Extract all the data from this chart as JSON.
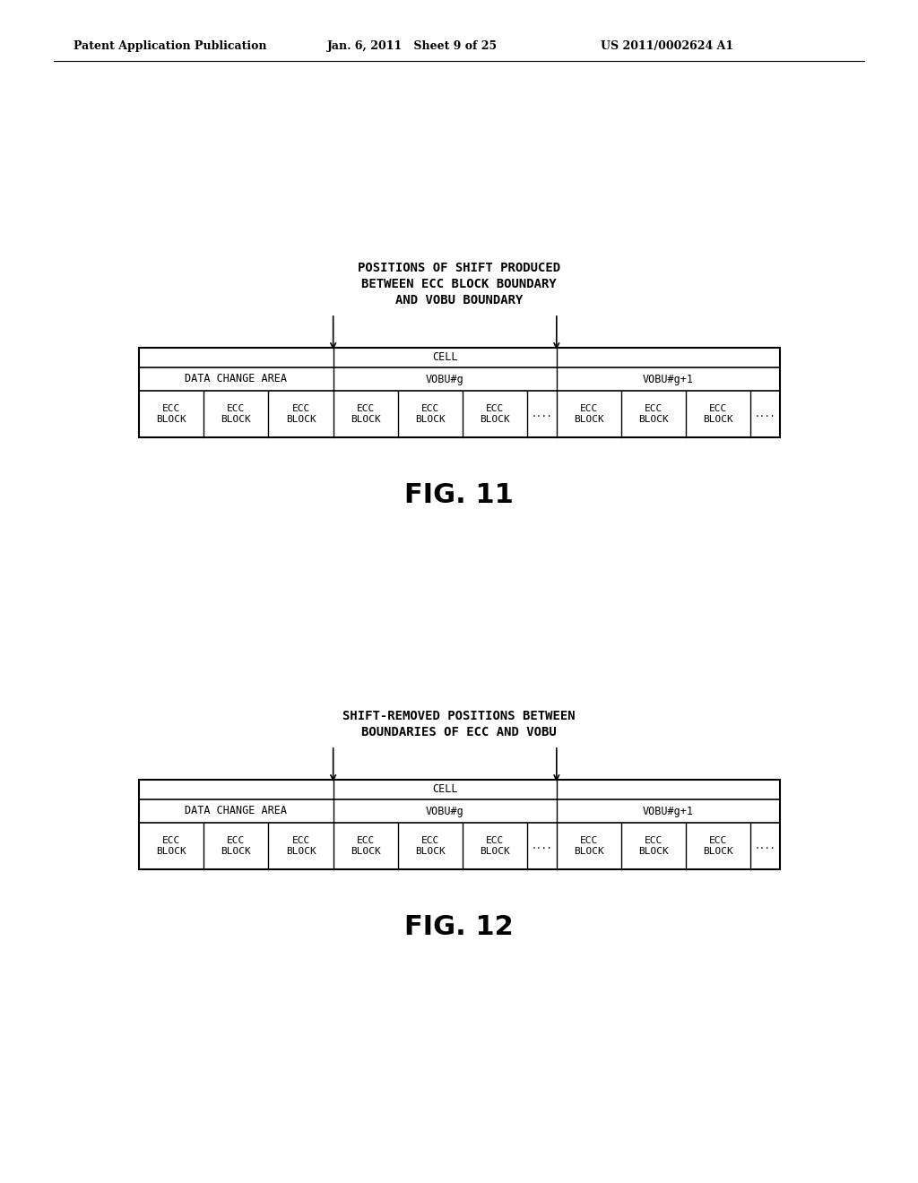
{
  "background_color": "#ffffff",
  "header_left": "Patent Application Publication",
  "header_mid": "Jan. 6, 2011   Sheet 9 of 25",
  "header_right": "US 2011/0002624 A1",
  "fig11_title_lines": [
    "POSITIONS OF SHIFT PRODUCED",
    "BETWEEN ECC BLOCK BOUNDARY",
    "AND VOBU BOUNDARY"
  ],
  "fig11_label": "FIG. 11",
  "fig12_title_lines": [
    "SHIFT-REMOVED POSITIONS BETWEEN",
    "BOUNDARIES OF ECC AND VOBU"
  ],
  "fig12_label": "FIG. 12",
  "line_color": "#000000",
  "text_color": "#000000",
  "font_mono": "DejaVu Sans Mono"
}
